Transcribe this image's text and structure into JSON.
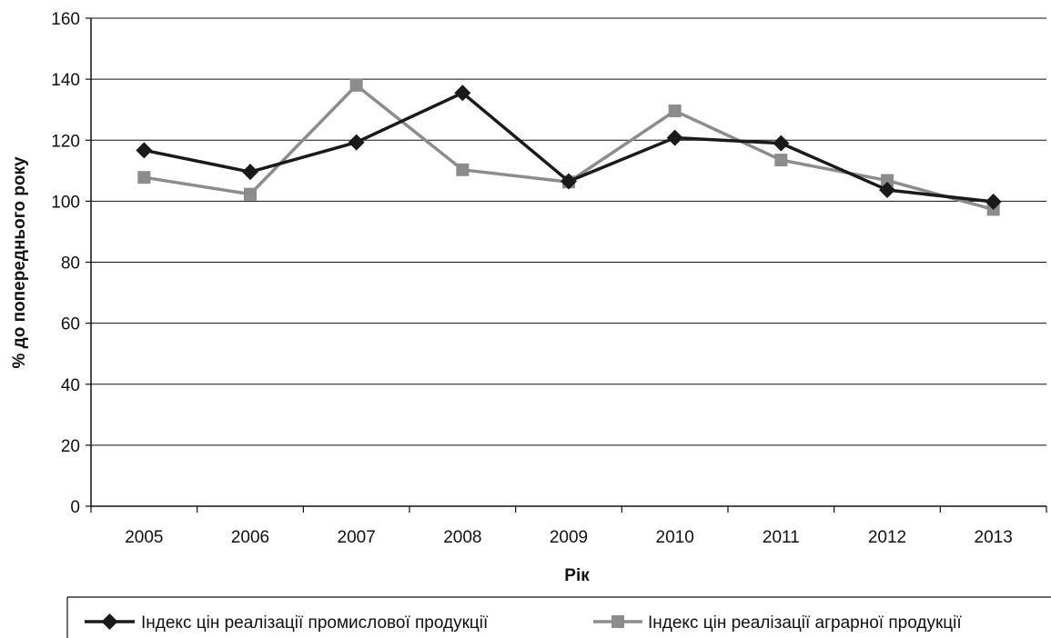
{
  "chart_data": {
    "type": "line",
    "categories": [
      "2005",
      "2006",
      "2007",
      "2008",
      "2009",
      "2010",
      "2011",
      "2012",
      "2013"
    ],
    "series": [
      {
        "name": "Індекс цін реалізації промислової продукції",
        "values": [
          116.7,
          109.6,
          119.3,
          135.5,
          106.5,
          120.8,
          119.0,
          103.7,
          99.8
        ],
        "color": "#1a1a1a",
        "marker": "diamond"
      },
      {
        "name": "Індекс цін реалізації аграрної продукції",
        "values": [
          107.8,
          102.3,
          138.0,
          110.3,
          106.3,
          129.6,
          113.5,
          106.8,
          97.3
        ],
        "color": "#8c8c8c",
        "marker": "square"
      }
    ],
    "xlabel": "Рік",
    "ylabel": "% до попереднього року",
    "ylim": [
      0,
      160
    ],
    "yticks": [
      "0",
      "20",
      "40",
      "60",
      "80",
      "100",
      "120",
      "140",
      "160"
    ],
    "grid": true,
    "legend_position": "bottom"
  }
}
